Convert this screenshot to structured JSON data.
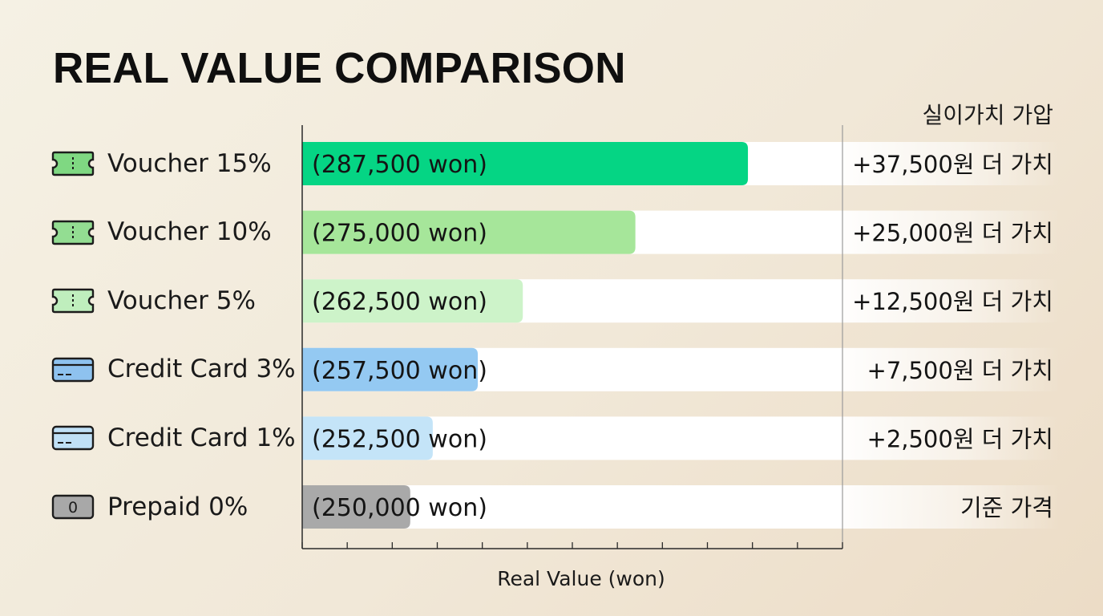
{
  "title": "REAL VALUE  COMPARISON",
  "right_header": "실이가치 가압",
  "rows": [
    {
      "label": "Voucher 15%",
      "icon": "ticket-icon",
      "icon_color": "#7fd882"
    },
    {
      "label": "Voucher 10%",
      "icon": "ticket-icon",
      "icon_color": "#93dd92"
    },
    {
      "label": "Voucher 5%",
      "icon": "ticket-icon",
      "icon_color": "#bfeebd"
    },
    {
      "label": "Credit Card 3%",
      "icon": "credit-card-icon",
      "icon_color": "#8ec2ef"
    },
    {
      "label": "Credit Card 1%",
      "icon": "credit-card-icon",
      "icon_color": "#bfe0f6"
    },
    {
      "label": "Prepaid 0%",
      "icon": "prepaid-badge-icon",
      "icon_color": "#a8a8a8",
      "icon_text": "0"
    }
  ],
  "chart_data": {
    "type": "bar",
    "orientation": "horizontal",
    "title": "REAL VALUE  COMPARISON",
    "xlabel": "Real Value (won)",
    "ylabel": "",
    "categories": [
      "Voucher 15%",
      "Voucher 10%",
      "Voucher 5%",
      "Credit Card 3%",
      "Credit Card 1%",
      "Prepaid 0%"
    ],
    "values": [
      287500,
      275000,
      262500,
      257500,
      252500,
      250000
    ],
    "bar_labels": [
      "(287,500 won)",
      "(275,000 won)",
      "(262,500 won)",
      "(257,500 won)",
      "(252,500 won)",
      "(250,000 won)"
    ],
    "bar_colors": [
      "#05d584",
      "#a6e69a",
      "#cdf3c9",
      "#94c9f2",
      "#c4e4f8",
      "#a9a9a9"
    ],
    "annotations": [
      "+37,500원 더 가치",
      "+25,000원 더 가치",
      "+12,500원 더 가치",
      "+7,500원 더 가치",
      "+2,500원 더 가치",
      "기준 가격"
    ],
    "x_tick_count": 12,
    "x_tick_labels": false,
    "grid": false,
    "legend": "none"
  }
}
